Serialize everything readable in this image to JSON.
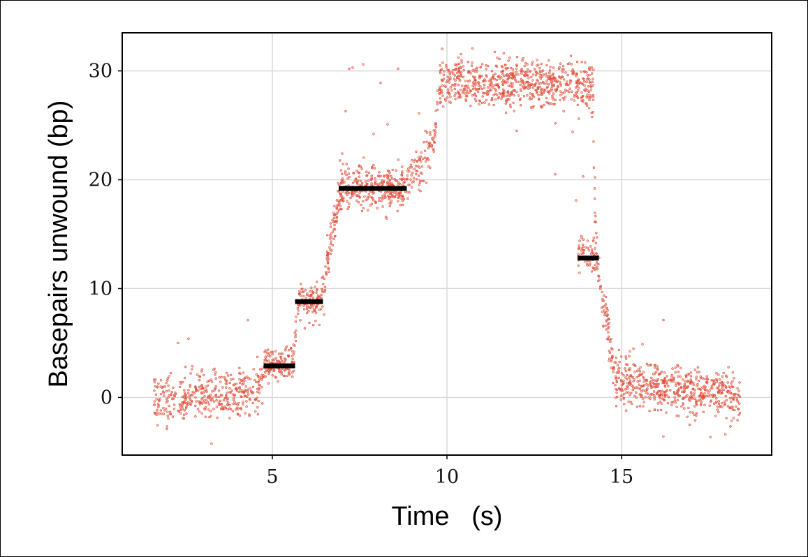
{
  "chart_data": {
    "type": "scatter",
    "title": "",
    "xlabel": "Time   (s)",
    "ylabel": "Basepairs unwound (bp)",
    "xlim": [
      0.7,
      19.3
    ],
    "ylim": [
      -5.3,
      33.5
    ],
    "xticks": [
      5,
      10,
      15
    ],
    "yticks": [
      0,
      10,
      20,
      30
    ],
    "xtick_labels": [
      "5",
      "10",
      "15"
    ],
    "ytick_labels": [
      "0",
      "10",
      "20",
      "30"
    ],
    "grid": true,
    "legend": "none",
    "colors": {
      "points": "#e0503c",
      "steps": "#000000",
      "grid": "#d9d9d9",
      "axis": "#000000"
    },
    "series": [
      {
        "kind": "scatter",
        "segments": [
          {
            "t_start": 1.6,
            "t_end": 4.6,
            "y_start": -0.3,
            "y_end": 0.5,
            "noise": 1.1,
            "n": 380
          },
          {
            "t_start": 4.6,
            "t_end": 4.8,
            "y_start": 0.5,
            "y_end": 3.0,
            "noise": 0.7,
            "n": 25
          },
          {
            "t_start": 4.8,
            "t_end": 5.6,
            "y_start": 3.0,
            "y_end": 3.0,
            "noise": 0.8,
            "n": 120
          },
          {
            "t_start": 5.6,
            "t_end": 5.75,
            "y_start": 3.0,
            "y_end": 8.9,
            "noise": 0.6,
            "n": 20
          },
          {
            "t_start": 5.75,
            "t_end": 6.4,
            "y_start": 8.9,
            "y_end": 8.9,
            "noise": 0.9,
            "n": 90
          },
          {
            "t_start": 6.4,
            "t_end": 6.9,
            "y_start": 9.0,
            "y_end": 19.0,
            "noise": 0.9,
            "n": 80
          },
          {
            "t_start": 6.9,
            "t_end": 8.8,
            "y_start": 19.2,
            "y_end": 19.2,
            "noise": 0.9,
            "n": 320
          },
          {
            "t_start": 8.8,
            "t_end": 9.6,
            "y_start": 19.5,
            "y_end": 23.0,
            "noise": 1.0,
            "n": 80
          },
          {
            "t_start": 9.6,
            "t_end": 9.8,
            "y_start": 23.0,
            "y_end": 29.0,
            "noise": 0.8,
            "n": 25
          },
          {
            "t_start": 9.8,
            "t_end": 14.2,
            "y_start": 28.9,
            "y_end": 28.7,
            "noise": 1.1,
            "n": 700
          },
          {
            "t_start": 14.2,
            "t_end": 14.3,
            "y_start": 22.0,
            "y_end": 14.0,
            "noise": 2.5,
            "n": 15
          },
          {
            "t_start": 13.75,
            "t_end": 14.3,
            "y_start": 13.2,
            "y_end": 12.8,
            "noise": 0.9,
            "n": 60
          },
          {
            "t_start": 14.3,
            "t_end": 14.8,
            "y_start": 12.0,
            "y_end": 2.5,
            "noise": 1.0,
            "n": 70
          },
          {
            "t_start": 14.8,
            "t_end": 18.4,
            "y_start": 1.5,
            "y_end": 0.0,
            "noise": 1.1,
            "n": 560
          }
        ],
        "outliers": [
          {
            "x": 2.3,
            "y": 5.0
          },
          {
            "x": 2.6,
            "y": 5.4
          },
          {
            "x": 4.3,
            "y": 7.1
          },
          {
            "x": 7.3,
            "y": 30.3
          },
          {
            "x": 7.6,
            "y": 30.6
          },
          {
            "x": 8.1,
            "y": 28.9
          },
          {
            "x": 8.6,
            "y": 30.2
          },
          {
            "x": 7.1,
            "y": 26.3
          },
          {
            "x": 7.9,
            "y": 24.2
          },
          {
            "x": 8.3,
            "y": 25.1
          },
          {
            "x": 7.2,
            "y": 30.2
          },
          {
            "x": 12.0,
            "y": 24.5
          },
          {
            "x": 13.6,
            "y": 24.4
          },
          {
            "x": 13.9,
            "y": 20.3
          },
          {
            "x": 14.2,
            "y": 23.5
          },
          {
            "x": 14.1,
            "y": 30.1
          },
          {
            "x": 14.0,
            "y": 27.0
          },
          {
            "x": 13.1,
            "y": 20.5
          },
          {
            "x": 13.7,
            "y": 18.1
          },
          {
            "x": 16.2,
            "y": 7.1
          },
          {
            "x": 15.6,
            "y": 4.9
          },
          {
            "x": 9.2,
            "y": 26.1
          },
          {
            "x": 7.0,
            "y": 22.4
          }
        ]
      },
      {
        "kind": "steps",
        "steps": [
          {
            "t_start": 4.75,
            "t_end": 5.65,
            "y": 2.9
          },
          {
            "t_start": 5.65,
            "t_end": 6.45,
            "y": 8.8
          },
          {
            "t_start": 6.9,
            "t_end": 8.85,
            "y": 19.2
          },
          {
            "t_start": 13.75,
            "t_end": 14.35,
            "y": 12.8
          }
        ]
      }
    ]
  }
}
